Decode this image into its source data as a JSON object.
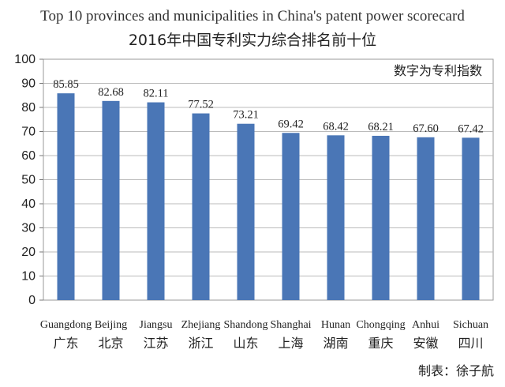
{
  "title_en": "Top 10 provinces and municipalities in China's patent power scorecard",
  "title_cn": "2016年中国专利实力综合排名前十位",
  "credit": "制表：徐子航",
  "chart_data": {
    "type": "bar",
    "title": "2016年中国专利实力综合排名前十位",
    "subtitle": "Top 10 provinces and municipalities in China's patent power scorecard",
    "annotation": "数字为专利指数",
    "categories": [
      "Guangdong",
      "Beijing",
      "Jiangsu",
      "Zhejiang",
      "Shandong",
      "Shanghai",
      "Hunan",
      "Chongqing",
      "Anhui",
      "Sichuan"
    ],
    "categories_cn": [
      "广东",
      "北京",
      "江苏",
      "浙江",
      "山东",
      "上海",
      "湖南",
      "重庆",
      "安徽",
      "四川"
    ],
    "values": [
      85.85,
      82.68,
      82.11,
      77.52,
      73.21,
      69.42,
      68.42,
      68.21,
      67.6,
      67.42
    ],
    "value_labels": [
      "85.85",
      "82.68",
      "82.11",
      "77.52",
      "73.21",
      "69.42",
      "68.42",
      "68.21",
      "67.60",
      "67.42"
    ],
    "ylim": [
      0,
      100
    ],
    "yticks": [
      0,
      10,
      20,
      30,
      40,
      50,
      60,
      70,
      80,
      90,
      100
    ],
    "grid": true,
    "bar_color": "#4a76b6",
    "grid_color": "#bbbbbb"
  }
}
